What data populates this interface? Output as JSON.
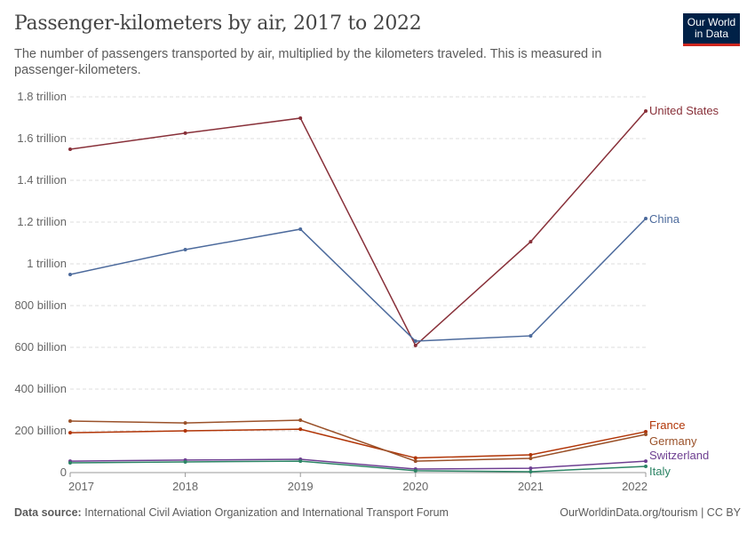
{
  "header": {
    "title": "Passenger-kilometers by air, 2017 to 2022",
    "subtitle": "The number of passengers transported by air, multiplied by the kilometers traveled. This is measured in passenger-kilometers.",
    "logo": "Our World in Data"
  },
  "footer": {
    "source_label": "Data source:",
    "source": "International Civil Aviation Organization and International Transport Forum",
    "link": "OurWorldinData.org/tourism | CC BY"
  },
  "chart_data": {
    "type": "line",
    "title": "Passenger-kilometers by air, 2017 to 2022",
    "x": [
      2017,
      2018,
      2019,
      2020,
      2021,
      2022
    ],
    "xticks": [
      "2017",
      "2018",
      "2019",
      "2020",
      "2021",
      "2022"
    ],
    "ylim": [
      0,
      1800
    ],
    "yunit": "billion",
    "yticks": [
      {
        "v": 0,
        "label": "0"
      },
      {
        "v": 200,
        "label": "200 billion"
      },
      {
        "v": 400,
        "label": "400 billion"
      },
      {
        "v": 600,
        "label": "600 billion"
      },
      {
        "v": 800,
        "label": "800 billion"
      },
      {
        "v": 1000,
        "label": "1 trillion"
      },
      {
        "v": 1200,
        "label": "1.2 trillion"
      },
      {
        "v": 1400,
        "label": "1.4 trillion"
      },
      {
        "v": 1600,
        "label": "1.6 trillion"
      },
      {
        "v": 1800,
        "label": "1.8 trillion"
      }
    ],
    "grid": true,
    "series": [
      {
        "name": "United States",
        "color": "#883039",
        "values": [
          1549,
          1626,
          1698,
          609,
          1106,
          1732
        ]
      },
      {
        "name": "China",
        "color": "#4c6a9c",
        "values": [
          949,
          1068,
          1166,
          630,
          655,
          1217
        ]
      },
      {
        "name": "France",
        "color": "#b13507",
        "values": [
          191,
          200,
          208,
          70,
          85,
          196
        ]
      },
      {
        "name": "Germany",
        "color": "#9a5129",
        "values": [
          247,
          238,
          251,
          55,
          68,
          183
        ]
      },
      {
        "name": "Switzerland",
        "color": "#6d3e91",
        "values": [
          55,
          60,
          64,
          17,
          21,
          55
        ]
      },
      {
        "name": "Italy",
        "color": "#2c8465",
        "values": [
          47,
          51,
          55,
          9,
          4,
          30
        ]
      }
    ]
  }
}
